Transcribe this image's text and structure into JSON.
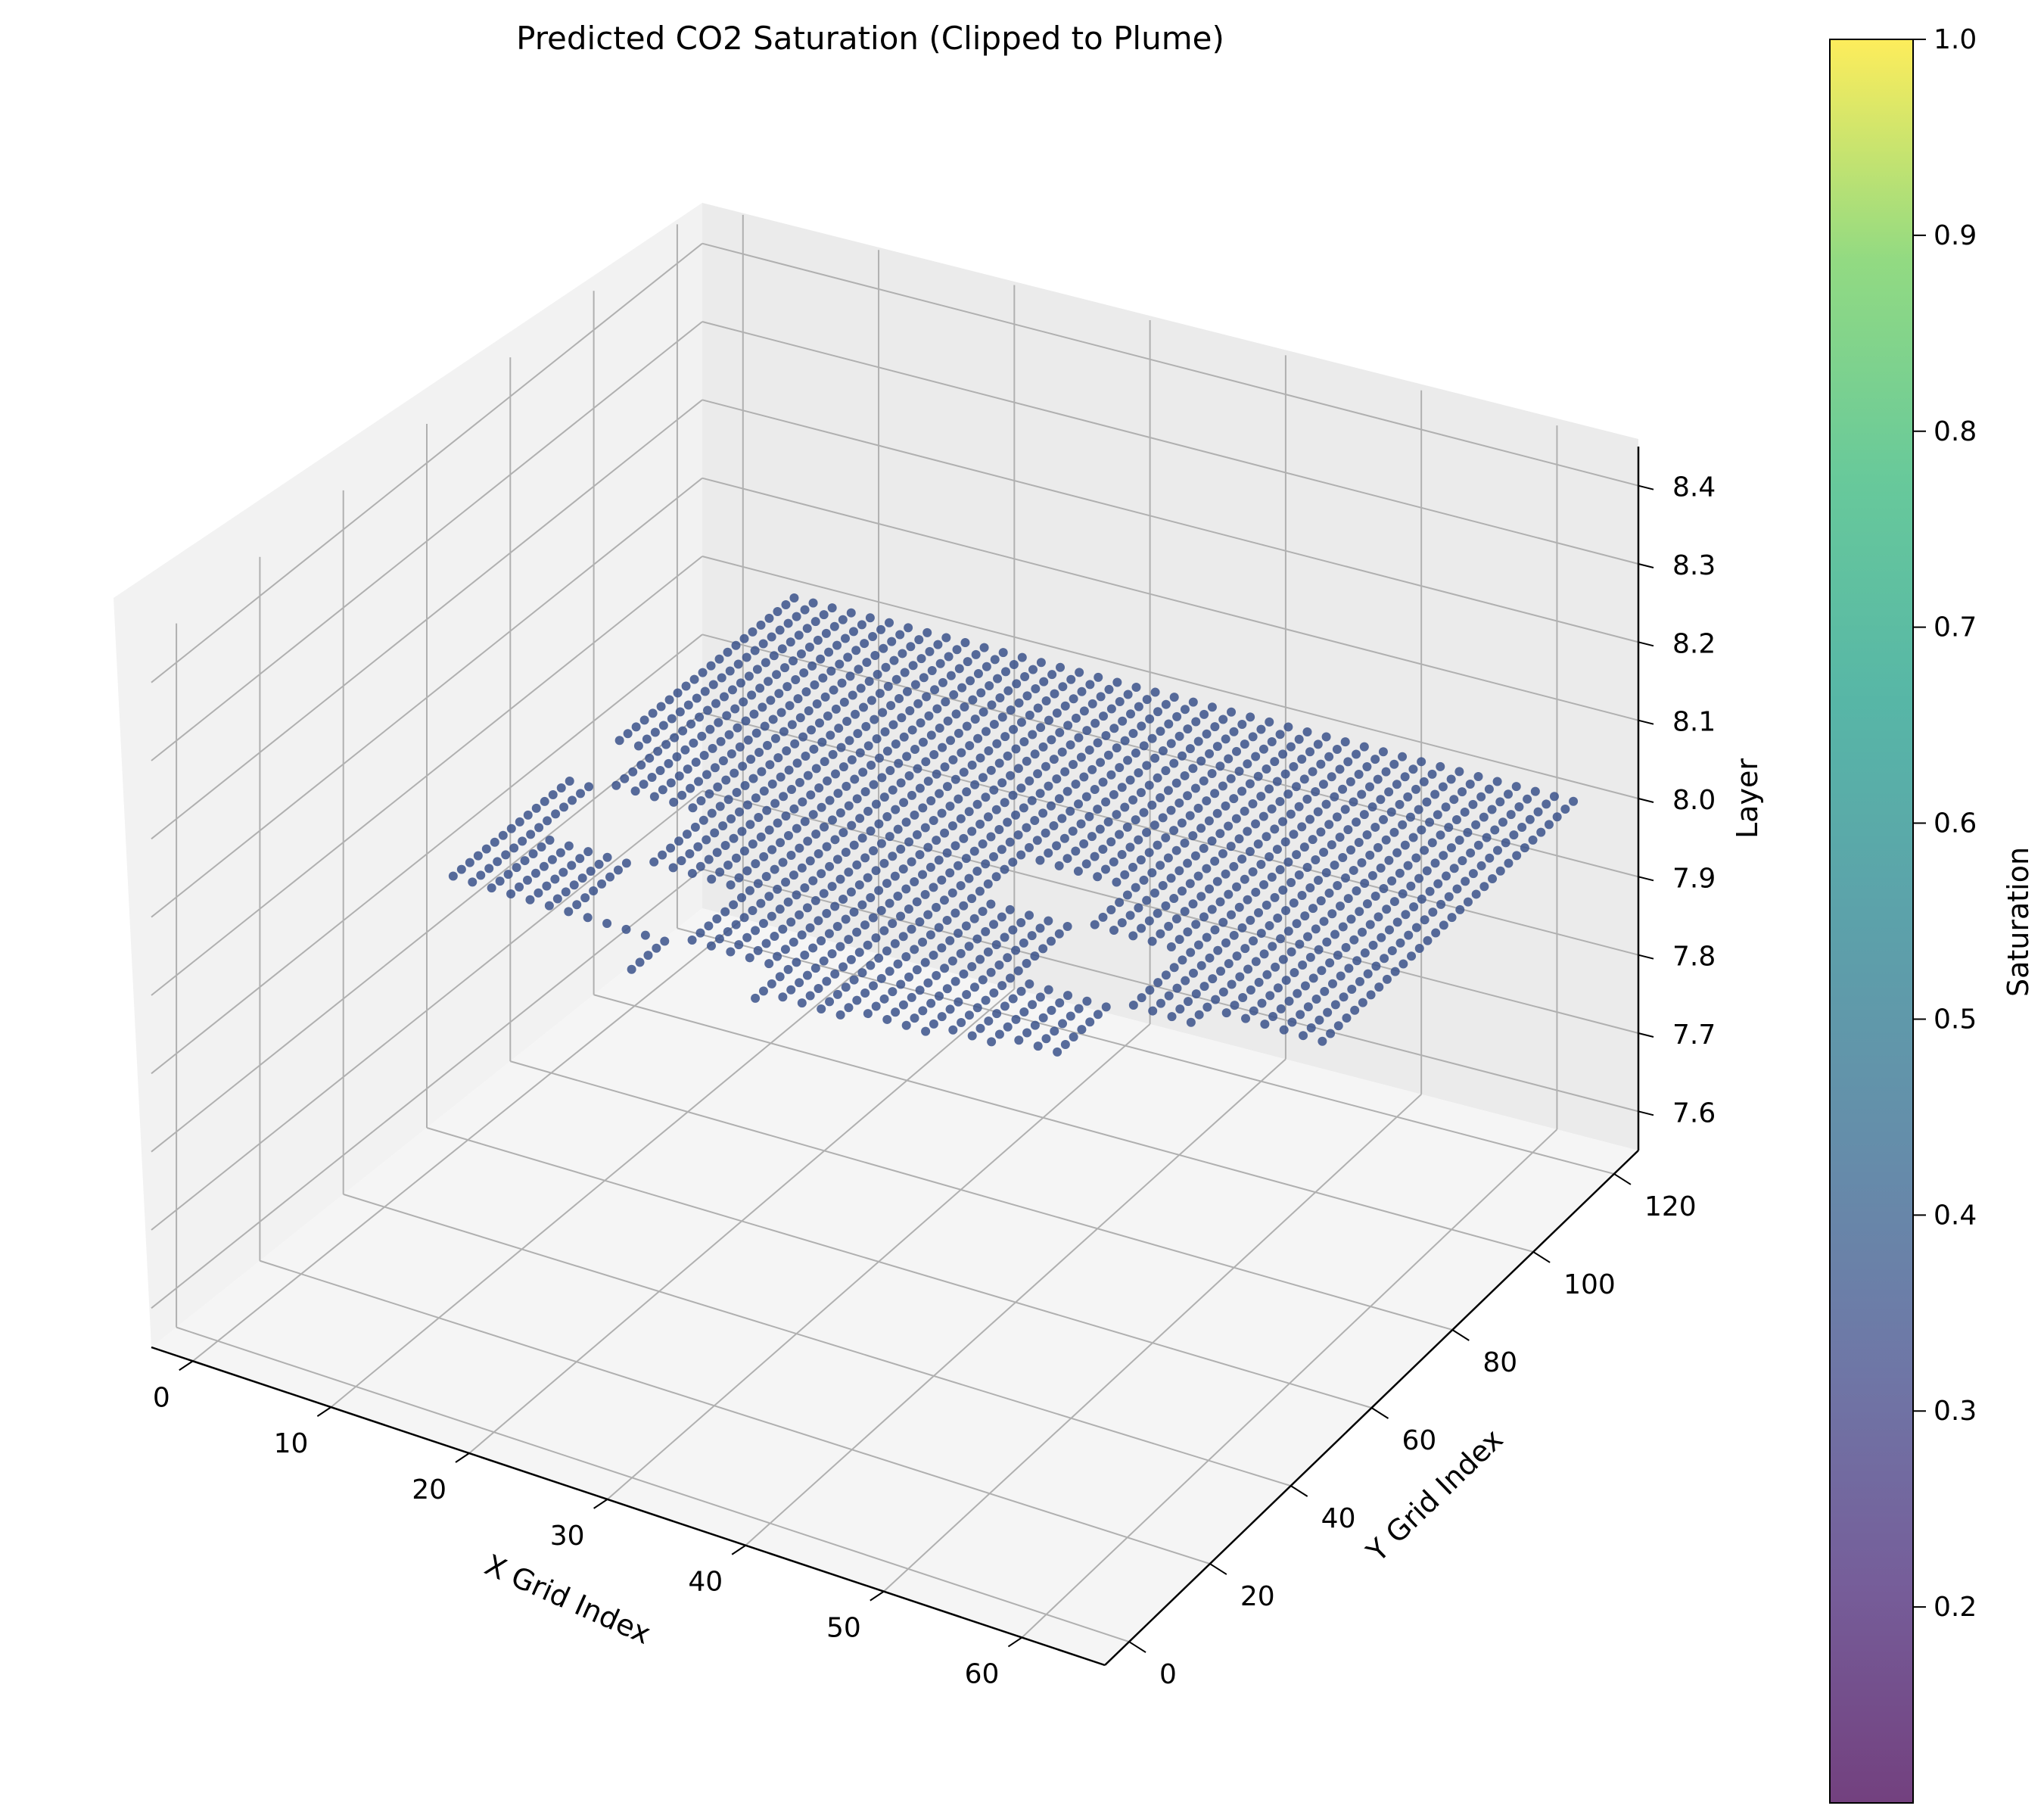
{
  "chart_data": {
    "type": "scatter",
    "title": "Predicted CO2 Saturation (Clipped to Plume)",
    "xlabel": "X Grid Index",
    "ylabel": "Y Grid Index",
    "zlabel": "Layer",
    "x_ticks": [
      "0",
      "10",
      "20",
      "30",
      "40",
      "50",
      "60"
    ],
    "y_ticks": [
      "0",
      "20",
      "40",
      "60",
      "80",
      "100",
      "120"
    ],
    "z_ticks": [
      "7.6",
      "7.7",
      "7.8",
      "7.9",
      "8.0",
      "8.1",
      "8.2",
      "8.3",
      "8.4"
    ],
    "xlim": [
      -3,
      66
    ],
    "ylim": [
      -6,
      126
    ],
    "zlim": [
      7.55,
      8.45
    ],
    "colorbar": {
      "label": "Saturation",
      "colormap": "viridis",
      "range": [
        0.1,
        1.0
      ],
      "ticks": [
        "0.2",
        "0.3",
        "0.4",
        "0.5",
        "0.6",
        "0.7",
        "0.8",
        "0.9",
        "1.0"
      ]
    },
    "grid": true,
    "point_layer": 8.0,
    "point_color": "#3b528b",
    "plume_extent": {
      "x": [
        5,
        63
      ],
      "y": [
        22,
        122
      ]
    }
  }
}
